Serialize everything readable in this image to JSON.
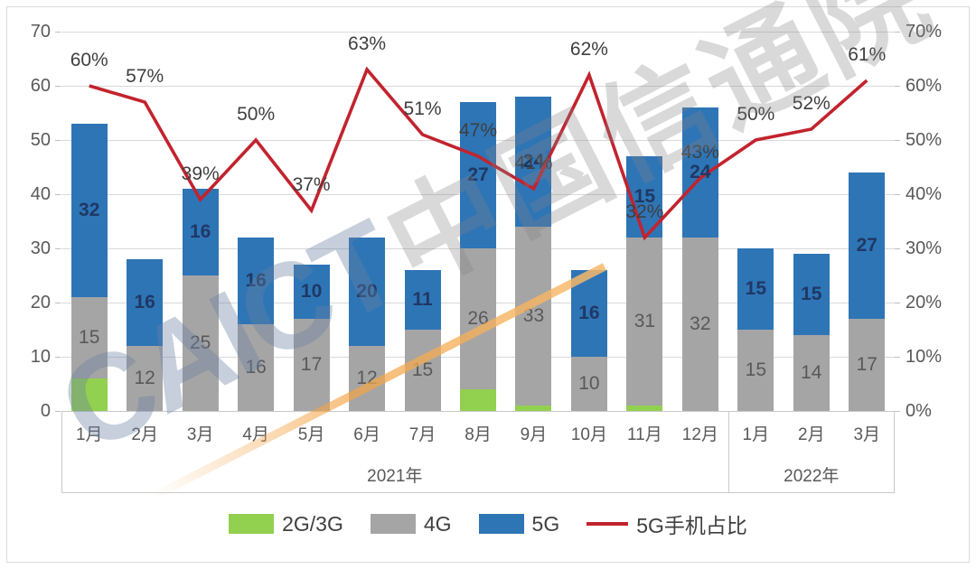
{
  "watermark": {
    "latin": "CAICT",
    "cjk": "中国信通院"
  },
  "chart_data": {
    "type": "bar",
    "subtype": "stacked-bar-with-line",
    "title": "",
    "categories": [
      "1月",
      "2月",
      "3月",
      "4月",
      "5月",
      "6月",
      "7月",
      "8月",
      "9月",
      "10月",
      "11月",
      "12月",
      "1月",
      "2月",
      "3月"
    ],
    "year_groups": [
      {
        "label": "2021年",
        "cols": 12
      },
      {
        "label": "2022年",
        "cols": 3
      }
    ],
    "series": [
      {
        "id": "2g3g",
        "name": "2G/3G",
        "type": "bar",
        "color": "#92D050",
        "show_labels": false,
        "values": [
          6,
          0,
          0,
          0,
          0,
          0,
          0,
          4,
          1,
          0,
          1,
          0,
          0,
          0,
          0
        ]
      },
      {
        "id": "4g",
        "name": "4G",
        "type": "bar",
        "color": "#A5A5A5",
        "show_labels": true,
        "label_color": "#595959",
        "label_bold": false,
        "values": [
          15,
          12,
          25,
          16,
          17,
          12,
          15,
          26,
          33,
          10,
          31,
          32,
          15,
          14,
          17
        ]
      },
      {
        "id": "5g",
        "name": "5G",
        "type": "bar",
        "color": "#2E75B6",
        "show_labels": true,
        "label_color": "#1F3864",
        "label_bold": true,
        "values": [
          32,
          16,
          16,
          16,
          10,
          20,
          11,
          27,
          24,
          16,
          15,
          24,
          15,
          15,
          27
        ]
      },
      {
        "id": "5g-share",
        "name": "5G手机占比",
        "type": "line",
        "color": "#C2232E",
        "unit": "%",
        "values": [
          60,
          57,
          39,
          50,
          37,
          63,
          51,
          47,
          41,
          62,
          32,
          43,
          50,
          52,
          61
        ]
      }
    ],
    "left_axis": {
      "min": 0,
      "max": 70,
      "step": 10,
      "ticks": [
        "70",
        "60",
        "50",
        "40",
        "30",
        "20",
        "10",
        "0"
      ]
    },
    "right_axis": {
      "min": "0%",
      "max": "70%",
      "ticks": [
        "70%",
        "60%",
        "50%",
        "40%",
        "30%",
        "20%",
        "10%",
        "0%"
      ]
    },
    "legend_position": "bottom",
    "grid": "horizontal"
  }
}
